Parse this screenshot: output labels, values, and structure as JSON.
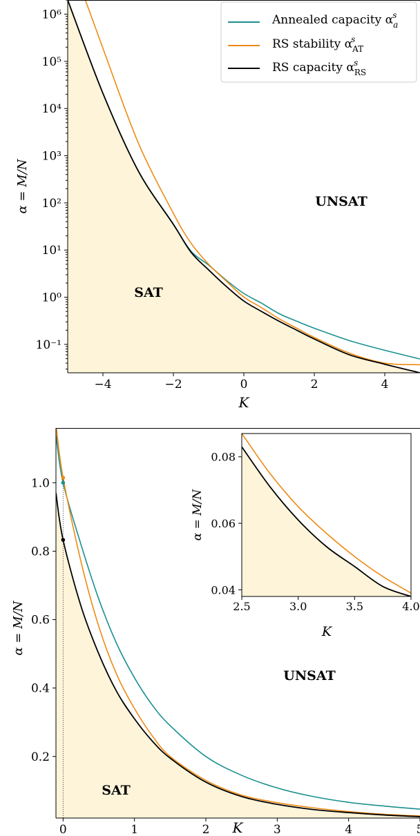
{
  "colors": {
    "annealed": "#1a8f8f",
    "rs_stability": "#ee8a12",
    "rs_capacity": "#000000",
    "sat_fill": "#fdf4d9",
    "frame": "#000000"
  },
  "chart_data": [
    {
      "type": "line",
      "yscale": "log",
      "xlabel": "K",
      "ylabel": "α = M/N",
      "xlim": [
        -5,
        5
      ],
      "ylim": [
        0.025,
        2000000
      ],
      "xticks": [
        -4,
        -2,
        0,
        2,
        4
      ],
      "xtick_labels": [
        "−4",
        "−2",
        "0",
        "2",
        "4"
      ],
      "yticks": [
        0.1,
        1,
        10,
        100,
        1000,
        10000,
        100000,
        1000000
      ],
      "ytick_labels": [
        "10⁻¹",
        "10⁰",
        "10¹",
        "10²",
        "10³",
        "10⁴",
        "10⁵",
        "10⁶"
      ],
      "grid": false,
      "legend_position": "top-right",
      "series": [
        {
          "name": "Annealed capacity α_a^s",
          "color_key": "annealed",
          "x": [
            -5,
            -4,
            -3,
            -2,
            -1.5,
            -1,
            -0.5,
            0,
            0.5,
            1,
            1.5,
            2,
            3,
            4,
            5
          ],
          "y": [
            2000000,
            21000,
            480,
            35,
            9.5,
            4.8,
            2.3,
            1.2,
            0.75,
            0.45,
            0.31,
            0.22,
            0.12,
            0.075,
            0.049
          ]
        },
        {
          "name": "RS stability α_AT^s",
          "color_key": "rs_stability",
          "x": [
            -4.5,
            -4,
            -3,
            -2,
            -1.5,
            -1,
            -0.5,
            0,
            0.5,
            1,
            1.5,
            2,
            3,
            4,
            5
          ],
          "y": [
            2000000,
            190000,
            1900,
            60,
            14,
            5.0,
            2.2,
            1.01,
            0.6,
            0.35,
            0.22,
            0.14,
            0.065,
            0.04,
            0.037
          ]
        },
        {
          "name": "RS capacity α_RS^s",
          "color_key": "rs_capacity",
          "x": [
            -5,
            -4,
            -3,
            -2,
            -1.5,
            -1,
            -0.5,
            0,
            0.5,
            1,
            1.5,
            2,
            3,
            4,
            5
          ],
          "y": [
            2000000,
            21000,
            480,
            35,
            9.0,
            3.8,
            1.7,
            0.83,
            0.5,
            0.31,
            0.2,
            0.13,
            0.06,
            0.038,
            0.025
          ]
        }
      ],
      "annotations": [
        "UNSAT",
        "SAT"
      ],
      "inset": null
    },
    {
      "type": "line",
      "xlabel": "K",
      "ylabel": "α = M/N",
      "xlim": [
        -0.1,
        5
      ],
      "ylim": [
        0.02,
        1.16
      ],
      "xticks": [
        0,
        1,
        2,
        3,
        4,
        5
      ],
      "xtick_labels": [
        "0",
        "1",
        "2",
        "3",
        "4",
        "5"
      ],
      "yticks": [
        0.2,
        0.4,
        0.6,
        0.8,
        1.0
      ],
      "ytick_labels": [
        "0.2",
        "0.4",
        "0.6",
        "0.8",
        "1.0"
      ],
      "grid": false,
      "series": [
        {
          "name": "Annealed capacity α_a^s",
          "color_key": "annealed",
          "x": [
            -0.1,
            0,
            0.25,
            0.5,
            0.75,
            1,
            1.25,
            1.5,
            2,
            2.5,
            3,
            3.5,
            4,
            4.5,
            5
          ],
          "y": [
            1.14,
            1.0,
            0.82,
            0.66,
            0.53,
            0.43,
            0.35,
            0.29,
            0.2,
            0.145,
            0.108,
            0.083,
            0.066,
            0.055,
            0.046
          ]
        },
        {
          "name": "RS stability α_AT^s",
          "color_key": "rs_stability",
          "x": [
            -0.1,
            0,
            0.25,
            0.5,
            0.75,
            1,
            1.25,
            1.5,
            2,
            2.5,
            3,
            3.5,
            4,
            4.5,
            5
          ],
          "y": [
            1.17,
            1.015,
            0.77,
            0.58,
            0.44,
            0.34,
            0.26,
            0.2,
            0.13,
            0.087,
            0.065,
            0.05,
            0.039,
            0.031,
            0.026
          ]
        },
        {
          "name": "RS capacity α_RS^s",
          "color_key": "rs_capacity",
          "x": [
            -0.1,
            0,
            0.25,
            0.5,
            0.75,
            1,
            1.25,
            1.5,
            2,
            2.5,
            3,
            3.5,
            4,
            4.5,
            5
          ],
          "y": [
            0.97,
            0.833,
            0.64,
            0.5,
            0.39,
            0.31,
            0.245,
            0.195,
            0.125,
            0.083,
            0.06,
            0.045,
            0.036,
            0.029,
            0.024
          ]
        }
      ],
      "markers": [
        {
          "x": 0,
          "y": 1.015,
          "color_key": "rs_stability"
        },
        {
          "x": 0,
          "y": 1.0,
          "color_key": "annealed"
        },
        {
          "x": 0,
          "y": 0.833,
          "color_key": "rs_capacity"
        }
      ],
      "annotations": [
        "UNSAT",
        "SAT"
      ],
      "inset": {
        "xlim": [
          2.5,
          4.0
        ],
        "ylim": [
          0.038,
          0.087
        ],
        "xticks": [
          2.5,
          3.0,
          3.5,
          4.0
        ],
        "xtick_labels": [
          "2.5",
          "3.0",
          "3.5",
          "4.0"
        ],
        "yticks": [
          0.04,
          0.06,
          0.08
        ],
        "ytick_labels": [
          "0.04",
          "0.06",
          "0.08"
        ],
        "xlabel": "K",
        "ylabel": "α = M/N",
        "series": [
          {
            "color_key": "rs_stability",
            "x": [
              2.5,
              2.75,
              3.0,
              3.25,
              3.5,
              3.75,
              4.0
            ],
            "y": [
              0.087,
              0.075,
              0.065,
              0.057,
              0.05,
              0.044,
              0.039
            ]
          },
          {
            "color_key": "rs_capacity",
            "x": [
              2.5,
              2.75,
              3.0,
              3.25,
              3.5,
              3.75,
              4.0
            ],
            "y": [
              0.083,
              0.071,
              0.061,
              0.053,
              0.047,
              0.041,
              0.038
            ]
          }
        ]
      }
    }
  ],
  "legend": {
    "items": [
      {
        "label": "Annealed capacity α",
        "sub": "a",
        "sup": "s",
        "color_key": "annealed"
      },
      {
        "label": "RS stability α",
        "sub": "AT",
        "sup": "s",
        "color_key": "rs_stability"
      },
      {
        "label": "RS capacity α",
        "sub": "RS",
        "sup": "s",
        "color_key": "rs_capacity"
      }
    ]
  },
  "regions": {
    "unsat": "UNSAT",
    "sat": "SAT"
  }
}
